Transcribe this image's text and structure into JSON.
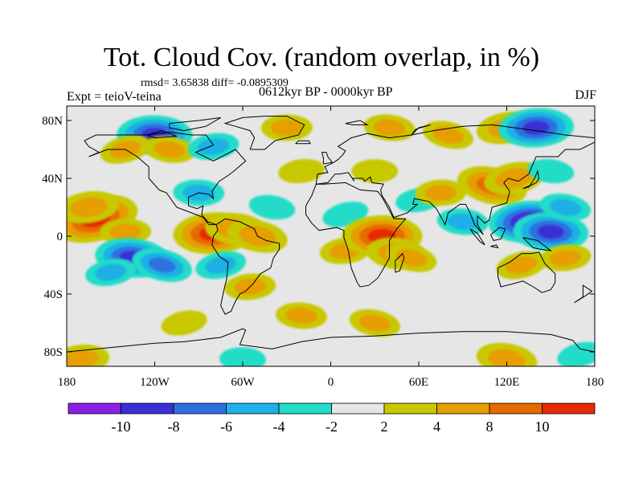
{
  "title": "Tot. Cloud Cov. (random overlap, in %)",
  "stats": "rmsd= 3.65838  diff= -0.0895309",
  "experiment": "Expt = teioV-teina",
  "period": "0612kyr BP - 0000kyr BP",
  "season": "DJF",
  "map": {
    "projection": "cylindrical-equidistant",
    "background_color": "#e6e6e6",
    "lon_range": [
      -180,
      180
    ],
    "lat_range": [
      -90,
      90
    ],
    "x_ticks": [
      {
        "lon": -180,
        "label": "180"
      },
      {
        "lon": -120,
        "label": "120W"
      },
      {
        "lon": -60,
        "label": "60W"
      },
      {
        "lon": 0,
        "label": "0"
      },
      {
        "lon": 60,
        "label": "60E"
      },
      {
        "lon": 120,
        "label": "120E"
      },
      {
        "lon": 180,
        "label": "180"
      }
    ],
    "y_ticks": [
      {
        "lat": 80,
        "label": "80N"
      },
      {
        "lat": 40,
        "label": "40N"
      },
      {
        "lat": 0,
        "label": "0"
      },
      {
        "lat": -40,
        "label": "40S"
      },
      {
        "lat": -80,
        "label": "80S"
      }
    ]
  },
  "colorbar": {
    "colors": [
      "#8a1fe6",
      "#3b2fd6",
      "#2e6fe0",
      "#1fb0e6",
      "#20dcc8",
      "#e6e6e6",
      "#c8c800",
      "#e69e00",
      "#e66a00",
      "#e62a00"
    ],
    "labels": [
      "-10",
      "-8",
      "-6",
      "-4",
      "-2",
      "2",
      "4",
      "8",
      "10"
    ]
  },
  "anomalies": [
    {
      "lon": -160,
      "lat": 12,
      "value": 11
    },
    {
      "lon": -165,
      "lat": 20,
      "value": 6
    },
    {
      "lon": -140,
      "lat": 3,
      "value": 4
    },
    {
      "lon": -135,
      "lat": -15,
      "value": -9
    },
    {
      "lon": -115,
      "lat": -20,
      "value": -6
    },
    {
      "lon": -150,
      "lat": -25,
      "value": -4
    },
    {
      "lon": -80,
      "lat": 2,
      "value": 10
    },
    {
      "lon": -65,
      "lat": 5,
      "value": 6
    },
    {
      "lon": -50,
      "lat": 0,
      "value": 6
    },
    {
      "lon": -75,
      "lat": -20,
      "value": -4
    },
    {
      "lon": -55,
      "lat": -35,
      "value": 4
    },
    {
      "lon": -90,
      "lat": 30,
      "value": -4
    },
    {
      "lon": -40,
      "lat": 20,
      "value": -3
    },
    {
      "lon": 10,
      "lat": 15,
      "value": -3
    },
    {
      "lon": 10,
      "lat": -10,
      "value": 4
    },
    {
      "lon": 35,
      "lat": 0,
      "value": 10
    },
    {
      "lon": 45,
      "lat": -12,
      "value": 6
    },
    {
      "lon": 55,
      "lat": -15,
      "value": 4
    },
    {
      "lon": 60,
      "lat": 25,
      "value": -3
    },
    {
      "lon": 75,
      "lat": 30,
      "value": 4
    },
    {
      "lon": 90,
      "lat": 10,
      "value": -4
    },
    {
      "lon": 110,
      "lat": 35,
      "value": 8
    },
    {
      "lon": 125,
      "lat": 40,
      "value": 6
    },
    {
      "lon": 135,
      "lat": 10,
      "value": -10
    },
    {
      "lon": 150,
      "lat": 3,
      "value": -9
    },
    {
      "lon": 160,
      "lat": 20,
      "value": -4
    },
    {
      "lon": 130,
      "lat": -20,
      "value": 4
    },
    {
      "lon": 160,
      "lat": -15,
      "value": 4
    },
    {
      "lon": -120,
      "lat": 70,
      "value": -9
    },
    {
      "lon": -110,
      "lat": 60,
      "value": 4
    },
    {
      "lon": -140,
      "lat": 60,
      "value": 4
    },
    {
      "lon": -80,
      "lat": 62,
      "value": -4
    },
    {
      "lon": -30,
      "lat": 75,
      "value": 4
    },
    {
      "lon": 40,
      "lat": 75,
      "value": 4
    },
    {
      "lon": 80,
      "lat": 70,
      "value": 4
    },
    {
      "lon": 120,
      "lat": 75,
      "value": 6
    },
    {
      "lon": 140,
      "lat": 75,
      "value": -9
    },
    {
      "lon": -20,
      "lat": -55,
      "value": 4
    },
    {
      "lon": 30,
      "lat": -60,
      "value": 4
    },
    {
      "lon": -100,
      "lat": -60,
      "value": 3
    },
    {
      "lon": -170,
      "lat": -85,
      "value": 5
    },
    {
      "lon": -60,
      "lat": -85,
      "value": -3
    },
    {
      "lon": 120,
      "lat": -85,
      "value": 6
    },
    {
      "lon": 170,
      "lat": -82,
      "value": -3
    },
    {
      "lon": -20,
      "lat": 45,
      "value": 3
    },
    {
      "lon": 30,
      "lat": 45,
      "value": 3
    },
    {
      "lon": 150,
      "lat": 45,
      "value": -3
    }
  ]
}
